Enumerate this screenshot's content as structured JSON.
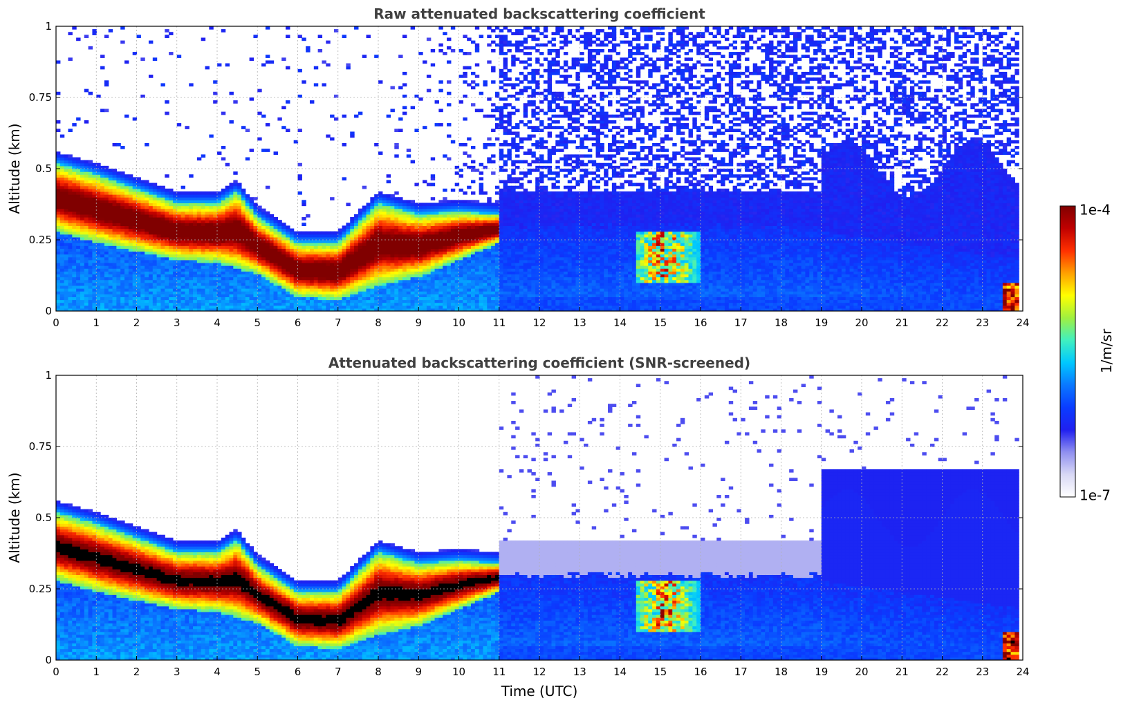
{
  "colormap": {
    "label": "1/m/sr",
    "max_label": "1e-4",
    "min_label": "1e-7",
    "log_range": [
      -7,
      -4
    ],
    "stops": [
      "#ffffff",
      "#d8d8f5",
      "#9090f0",
      "#2020f0",
      "#0a3cff",
      "#0a78ff",
      "#00c8ff",
      "#40f0c0",
      "#a0f040",
      "#ffff00",
      "#ffa000",
      "#ff3000",
      "#c00000",
      "#800000"
    ]
  },
  "chart_data": [
    {
      "type": "heatmap",
      "title": "Raw attenuated backscattering coefficient",
      "xlabel": "",
      "ylabel": "Altitude (km)",
      "xlim": [
        0,
        24
      ],
      "ylim": [
        0,
        1
      ],
      "xticks": [
        "0",
        "1",
        "2",
        "3",
        "4",
        "5",
        "6",
        "7",
        "8",
        "9",
        "10",
        "11",
        "12",
        "13",
        "14",
        "15",
        "16",
        "17",
        "18",
        "19",
        "20",
        "21",
        "22",
        "23",
        "24"
      ],
      "yticks": [
        "0",
        "0.25",
        "0.5",
        "0.75",
        "1"
      ],
      "yticks_values": [
        0,
        0.25,
        0.5,
        0.75,
        1
      ],
      "grid": true,
      "layer_top_km": [
        [
          0,
          0.52
        ],
        [
          1,
          0.48
        ],
        [
          2,
          0.43
        ],
        [
          3,
          0.38
        ],
        [
          4,
          0.38
        ],
        [
          4.5,
          0.42
        ],
        [
          5,
          0.33
        ],
        [
          6,
          0.24
        ],
        [
          7,
          0.24
        ],
        [
          8,
          0.38
        ],
        [
          9,
          0.34
        ],
        [
          10,
          0.35
        ],
        [
          11,
          0.34
        ]
      ],
      "layer_bottom_km": [
        [
          0,
          0.28
        ],
        [
          1,
          0.24
        ],
        [
          2,
          0.21
        ],
        [
          3,
          0.18
        ],
        [
          4,
          0.17
        ],
        [
          5,
          0.13
        ],
        [
          6,
          0.05
        ],
        [
          7,
          0.04
        ],
        [
          8,
          0.09
        ],
        [
          9,
          0.12
        ],
        [
          10,
          0.18
        ],
        [
          11,
          0.24
        ]
      ],
      "colormap_label": "1/m/sr"
    },
    {
      "type": "heatmap",
      "title": "Attenuated backscattering coefficient (SNR-screened)",
      "xlabel": "Time (UTC)",
      "ylabel": "Altitude (km)",
      "xlim": [
        0,
        24
      ],
      "ylim": [
        0,
        1
      ],
      "xticks": [
        "0",
        "1",
        "2",
        "3",
        "4",
        "5",
        "6",
        "7",
        "8",
        "9",
        "10",
        "11",
        "12",
        "13",
        "14",
        "15",
        "16",
        "17",
        "18",
        "19",
        "20",
        "21",
        "22",
        "23",
        "24"
      ],
      "yticks": [
        "0",
        "0.25",
        "0.5",
        "0.75",
        "1"
      ],
      "yticks_values": [
        0,
        0.25,
        0.5,
        0.75,
        1
      ],
      "grid": true,
      "layer_top_km": [
        [
          0,
          0.52
        ],
        [
          1,
          0.48
        ],
        [
          2,
          0.43
        ],
        [
          3,
          0.38
        ],
        [
          4,
          0.38
        ],
        [
          4.5,
          0.42
        ],
        [
          5,
          0.33
        ],
        [
          6,
          0.24
        ],
        [
          7,
          0.24
        ],
        [
          8,
          0.38
        ],
        [
          9,
          0.34
        ],
        [
          10,
          0.35
        ],
        [
          11,
          0.34
        ]
      ],
      "layer_bottom_km": [
        [
          0,
          0.28
        ],
        [
          1,
          0.24
        ],
        [
          2,
          0.21
        ],
        [
          3,
          0.18
        ],
        [
          4,
          0.17
        ],
        [
          5,
          0.13
        ],
        [
          6,
          0.05
        ],
        [
          7,
          0.04
        ],
        [
          8,
          0.09
        ],
        [
          9,
          0.12
        ],
        [
          10,
          0.18
        ],
        [
          11,
          0.24
        ]
      ],
      "colormap_label": "1/m/sr"
    }
  ]
}
